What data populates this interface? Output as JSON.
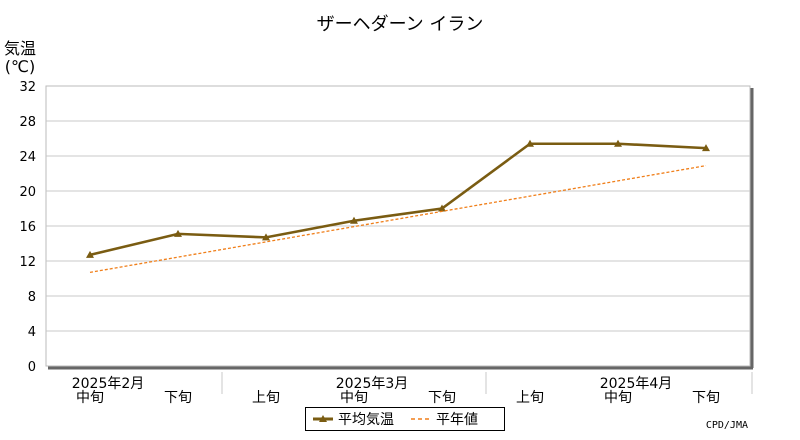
{
  "chart_data": {
    "type": "line",
    "title": "ザーヘダーン イラン",
    "ylabel_line1": "気温",
    "ylabel_line2": "(℃)",
    "ylim": [
      0,
      32
    ],
    "yticks": [
      0,
      4,
      8,
      12,
      16,
      20,
      24,
      28,
      32
    ],
    "grid": true,
    "categories": [
      "中旬",
      "下旬",
      "上旬",
      "中旬",
      "下旬",
      "上旬",
      "中旬",
      "下旬"
    ],
    "month_labels": [
      {
        "label": "2025年2月",
        "category_index": 0
      },
      {
        "label": "2025年3月",
        "category_index": 3
      },
      {
        "label": "2025年4月",
        "category_index": 6
      }
    ],
    "series": [
      {
        "name": "平均気温",
        "values": [
          12.7,
          15.1,
          14.7,
          16.6,
          18.0,
          25.4,
          25.4,
          24.9
        ],
        "color": "#7a5c12",
        "style": "solid-triangle"
      },
      {
        "name": "平年値",
        "values": [
          10.7,
          12.2,
          13.8,
          15.6,
          17.5,
          19.5,
          21.3,
          22.9
        ],
        "color": "#f07f1a",
        "style": "dashed"
      }
    ],
    "legend_position": "bottom-center",
    "source": "CPD/JMA"
  }
}
